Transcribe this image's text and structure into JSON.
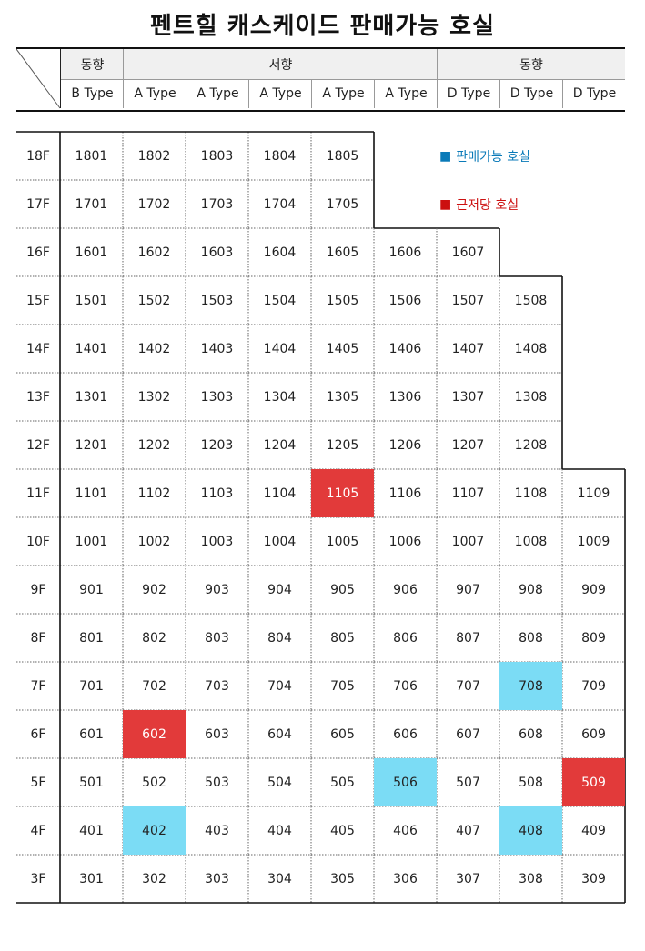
{
  "title": "펜트힐 캐스케이드 판매가능 호실",
  "header": {
    "directions": [
      {
        "label": "동향"
      },
      {
        "label": "서향"
      },
      {
        "label": "동향"
      }
    ],
    "types": [
      "B Type",
      "A Type",
      "A Type",
      "A Type",
      "A Type",
      "A Type",
      "D Type",
      "D Type",
      "D Type"
    ]
  },
  "legend": [
    {
      "label": "판매가능 호실",
      "color": "#0a7ab8",
      "marker": "■"
    },
    {
      "label": "근저당 호실",
      "color": "#cc1010",
      "marker": "■"
    }
  ],
  "colors": {
    "near": "#e23a3a",
    "sale": "#7bdcf5"
  },
  "floors": [
    {
      "label": "18F",
      "units": [
        "1801",
        "1802",
        "1803",
        "1804",
        "1805"
      ]
    },
    {
      "label": "17F",
      "units": [
        "1701",
        "1702",
        "1703",
        "1704",
        "1705"
      ]
    },
    {
      "label": "16F",
      "units": [
        "1601",
        "1602",
        "1603",
        "1604",
        "1605",
        "1606",
        "1607"
      ]
    },
    {
      "label": "15F",
      "units": [
        "1501",
        "1502",
        "1503",
        "1504",
        "1505",
        "1506",
        "1507",
        "1508"
      ]
    },
    {
      "label": "14F",
      "units": [
        "1401",
        "1402",
        "1403",
        "1404",
        "1405",
        "1406",
        "1407",
        "1408"
      ]
    },
    {
      "label": "13F",
      "units": [
        "1301",
        "1302",
        "1303",
        "1304",
        "1305",
        "1306",
        "1307",
        "1308"
      ]
    },
    {
      "label": "12F",
      "units": [
        "1201",
        "1202",
        "1203",
        "1204",
        "1205",
        "1206",
        "1207",
        "1208"
      ]
    },
    {
      "label": "11F",
      "units": [
        "1101",
        "1102",
        "1103",
        "1104",
        "1105",
        "1106",
        "1107",
        "1108",
        "1109"
      ],
      "near": [
        "1105"
      ]
    },
    {
      "label": "10F",
      "units": [
        "1001",
        "1002",
        "1003",
        "1004",
        "1005",
        "1006",
        "1007",
        "1008",
        "1009"
      ]
    },
    {
      "label": "9F",
      "units": [
        "901",
        "902",
        "903",
        "904",
        "905",
        "906",
        "907",
        "908",
        "909"
      ]
    },
    {
      "label": "8F",
      "units": [
        "801",
        "802",
        "803",
        "804",
        "805",
        "806",
        "807",
        "808",
        "809"
      ]
    },
    {
      "label": "7F",
      "units": [
        "701",
        "702",
        "703",
        "704",
        "705",
        "706",
        "707",
        "708",
        "709"
      ],
      "sale": [
        "708"
      ]
    },
    {
      "label": "6F",
      "units": [
        "601",
        "602",
        "603",
        "604",
        "605",
        "606",
        "607",
        "608",
        "609"
      ],
      "near": [
        "602"
      ]
    },
    {
      "label": "5F",
      "units": [
        "501",
        "502",
        "503",
        "504",
        "505",
        "506",
        "507",
        "508",
        "509"
      ],
      "sale": [
        "506"
      ],
      "near": [
        "509"
      ]
    },
    {
      "label": "4F",
      "units": [
        "401",
        "402",
        "403",
        "404",
        "405",
        "406",
        "407",
        "408",
        "409"
      ],
      "sale": [
        "402",
        "408"
      ]
    },
    {
      "label": "3F",
      "units": [
        "301",
        "302",
        "303",
        "304",
        "305",
        "306",
        "307",
        "308",
        "309"
      ]
    }
  ]
}
